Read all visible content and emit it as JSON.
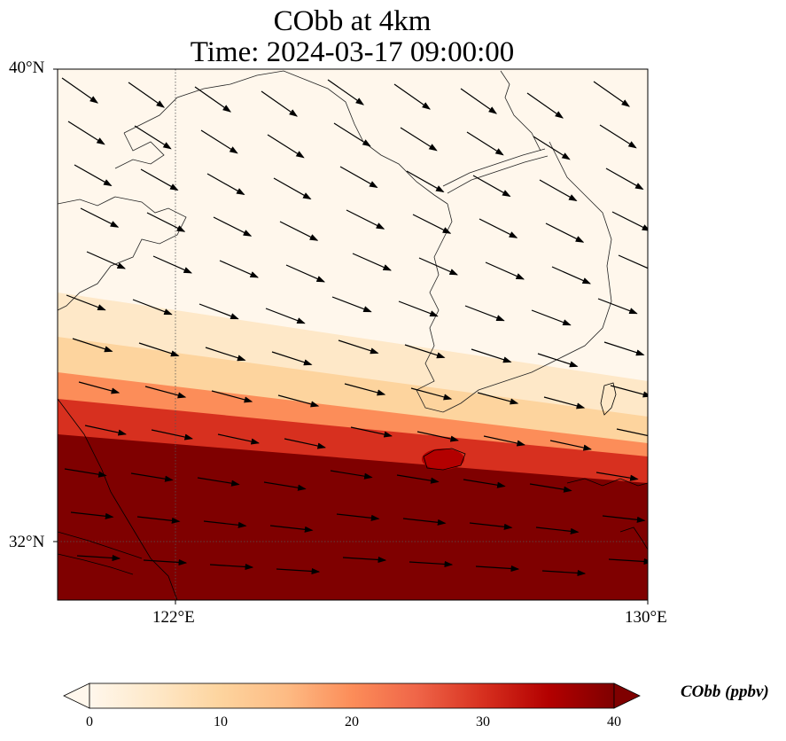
{
  "title_line1": "CObb at 4km",
  "title_line2": "Time: 2024-03-17 09:00:00",
  "y_ticks": [
    {
      "label": "40°N",
      "lat": 40
    },
    {
      "label": "32°N",
      "lat": 32
    }
  ],
  "x_ticks": [
    {
      "label": "122°E",
      "lon": 122
    },
    {
      "label": "130°E",
      "lon": 130
    }
  ],
  "map_extent": {
    "lon_min": 120,
    "lon_max": 130,
    "lat_min": 31,
    "lat_max": 40
  },
  "colorbar": {
    "label": "CObb (ppbv)",
    "ticks": [
      "0",
      "10",
      "20",
      "30",
      "40"
    ],
    "min": 0,
    "max": 40,
    "colormap": "OrRd",
    "colors": [
      "#fff7ec",
      "#fee8c8",
      "#fdd49e",
      "#fdbb84",
      "#fc8d59",
      "#ef6548",
      "#d7301f",
      "#b30000",
      "#7f0000"
    ],
    "extend": "both"
  },
  "chart_data": {
    "type": "heatmap",
    "variable": "CObb",
    "units": "ppbv",
    "level": "4km",
    "time": "2024-03-17 09:00:00",
    "field_description_by_latitude": [
      {
        "lat": 40,
        "value": 1
      },
      {
        "lat": 36,
        "value": 2
      },
      {
        "lat": 34.5,
        "value": 8
      },
      {
        "lat": 33.5,
        "value": 25
      },
      {
        "lat": 33,
        "value": 40
      },
      {
        "lat": 31,
        "value": 40
      }
    ],
    "wind_vectors_description": "Wind arrows predominantly from northwest to southeast in north, becoming westerly in south"
  }
}
